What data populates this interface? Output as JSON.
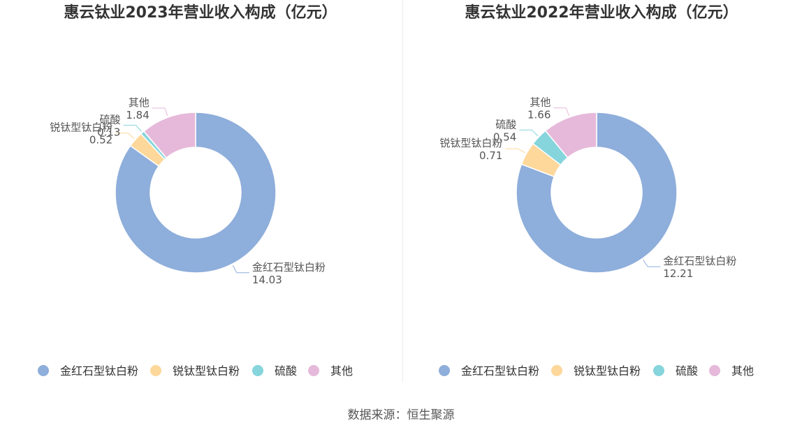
{
  "source_note": "数据来源：恒生聚源",
  "colors": {
    "金红石型钛白粉": "#8eaedb",
    "锐钛型钛白粉": "#fdd89a",
    "硫酸": "#86d5dc",
    "其他": "#e6b9da"
  },
  "chart_data": [
    {
      "type": "pie",
      "title": "惠云钛业2023年营业收入构成（亿元）",
      "labels": [
        "金红石型钛白粉",
        "锐钛型钛白粉",
        "硫酸",
        "其他"
      ],
      "values": [
        14.03,
        0.52,
        0.13,
        1.84
      ],
      "value_labels": [
        "14.03",
        "0.52",
        "0.13",
        "1.84"
      ],
      "legend_position": "bottom"
    },
    {
      "type": "pie",
      "title": "惠云钛业2022年营业收入构成（亿元）",
      "labels": [
        "金红石型钛白粉",
        "锐钛型钛白粉",
        "硫酸",
        "其他"
      ],
      "values": [
        12.21,
        0.71,
        0.54,
        1.66
      ],
      "value_labels": [
        "12.21",
        "0.71",
        "0.54",
        "1.66"
      ],
      "legend_position": "bottom"
    }
  ]
}
